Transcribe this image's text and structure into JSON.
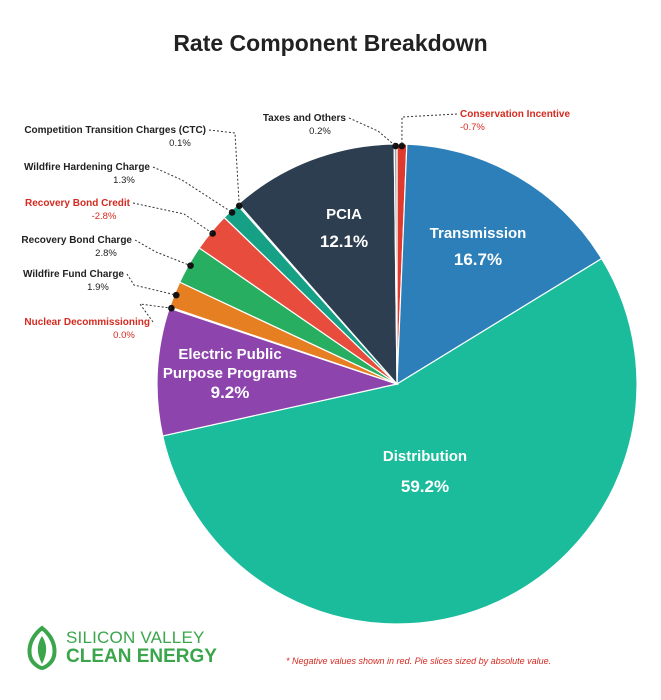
{
  "title": "Rate Component Breakdown",
  "footnote": "* Negative values shown in red. Pie slices sized by absolute value.",
  "logo": {
    "line1": "SILICON VALLEY",
    "line2": "CLEAN ENERGY",
    "color": "#3aa54a"
  },
  "chart_data": {
    "type": "pie",
    "title": "Rate Component Breakdown",
    "slices": [
      {
        "label": "Conservation Incentive",
        "value_text": "-0.7%",
        "value": -0.7,
        "color": "#e0392d",
        "negative": true,
        "label_mode": "outside-right"
      },
      {
        "label": "Transmission",
        "value_text": "16.7%",
        "value": 16.7,
        "color": "#2c7fb8",
        "negative": false,
        "label_mode": "inside"
      },
      {
        "label": "Distribution",
        "value_text": "59.2%",
        "value": 59.2,
        "color": "#1abc9c",
        "negative": false,
        "label_mode": "inside"
      },
      {
        "label": "Electric Public Purpose Programs",
        "value_text": "9.2%",
        "value": 9.2,
        "color": "#8e44ad",
        "negative": false,
        "label_mode": "inside"
      },
      {
        "label": "Nuclear Decommissioning",
        "value_text": "0.0%",
        "value": 0.0,
        "color": "#e0392d",
        "negative": true,
        "label_mode": "outside-left"
      },
      {
        "label": "Wildfire Fund Charge",
        "value_text": "1.9%",
        "value": 1.9,
        "color": "#e67e22",
        "negative": false,
        "label_mode": "outside-left"
      },
      {
        "label": "Recovery Bond Charge",
        "value_text": "2.8%",
        "value": 2.8,
        "color": "#27ae60",
        "negative": false,
        "label_mode": "outside-left"
      },
      {
        "label": "Recovery Bond Credit",
        "value_text": "-2.8%",
        "value": -2.8,
        "color": "#e74c3c",
        "negative": true,
        "label_mode": "outside-left"
      },
      {
        "label": "Wildfire Hardening Charge",
        "value_text": "1.3%",
        "value": 1.3,
        "color": "#16a085",
        "negative": false,
        "label_mode": "outside-left"
      },
      {
        "label": "Competition Transition Charges (CTC)",
        "value_text": "0.1%",
        "value": 0.1,
        "color": "#7f8c8d",
        "negative": false,
        "label_mode": "outside-left"
      },
      {
        "label": "PCIA",
        "value_text": "12.1%",
        "value": 12.1,
        "color": "#2c3e50",
        "negative": false,
        "label_mode": "inside"
      },
      {
        "label": "Taxes and Others",
        "value_text": "0.2%",
        "value": 0.2,
        "color": "#95a5a6",
        "negative": false,
        "label_mode": "outside-top"
      }
    ]
  }
}
